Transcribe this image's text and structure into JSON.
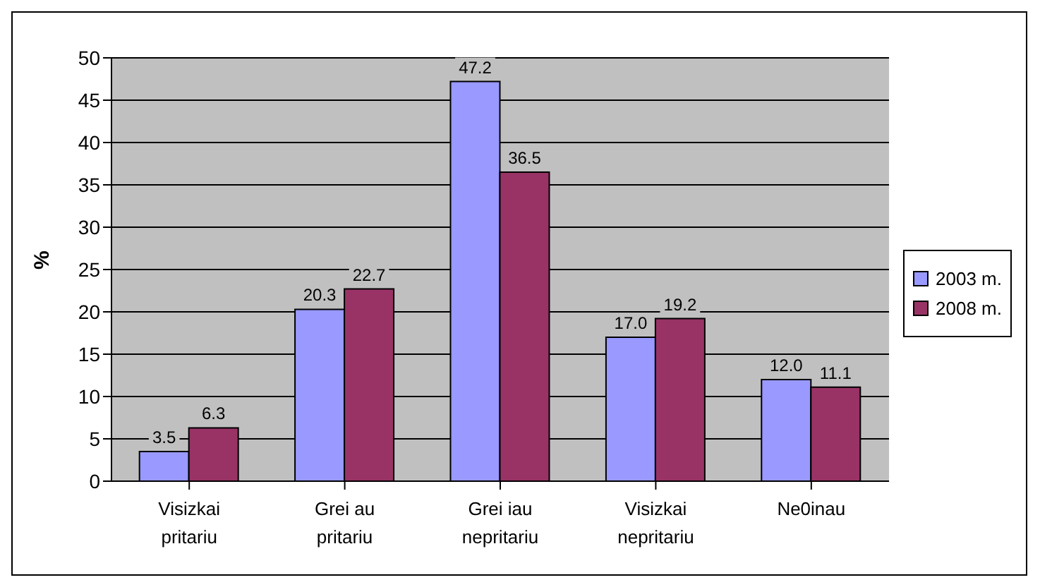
{
  "chart_data": {
    "type": "bar",
    "ylabel": "%",
    "categories": [
      "Visizkai pritariu",
      "Grei au pritariu",
      "Grei iau nepritariu",
      "Visizkai nepritariu",
      "Ne0inau"
    ],
    "series": [
      {
        "name": "2003 m.",
        "color": "#9999ff",
        "values": [
          3.5,
          20.3,
          47.2,
          17.0,
          12.0
        ],
        "value_labels": [
          "3.5",
          "20.3",
          "47.2",
          "17.0",
          "12.0"
        ]
      },
      {
        "name": "2008 m.",
        "color": "#993366",
        "values": [
          6.3,
          22.7,
          36.5,
          19.2,
          11.1
        ],
        "value_labels": [
          "6.3",
          "22.7",
          "36.5",
          "19.2",
          "11.1"
        ]
      }
    ],
    "ylim": [
      0,
      50
    ],
    "yticks": [
      0,
      5,
      10,
      15,
      20,
      25,
      30,
      35,
      40,
      45,
      50
    ],
    "grid": "y",
    "legend": "right"
  }
}
